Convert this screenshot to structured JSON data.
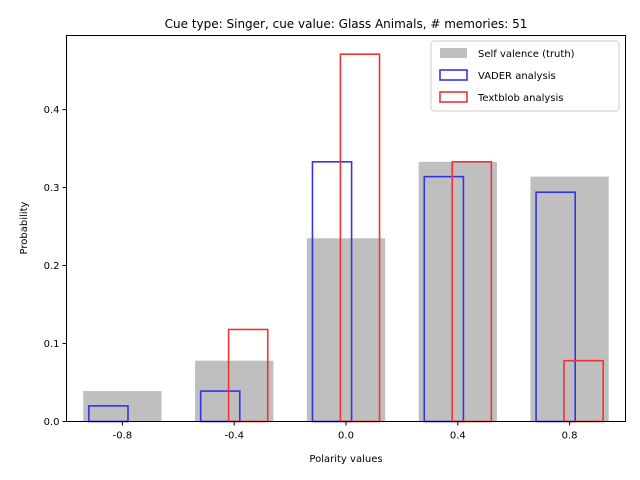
{
  "chart_data": {
    "type": "bar",
    "title": "Cue type: Singer, cue value: Glass Animals, # memories: 51",
    "xlabel": "Polarity values",
    "ylabel": "Probability",
    "x_ticks": [
      "-0.8",
      "-0.4",
      "0.0",
      "0.4",
      "0.8"
    ],
    "y_ticks": [
      "0.0",
      "0.1",
      "0.2",
      "0.3",
      "0.4"
    ],
    "xlim": [
      -1.0,
      1.0
    ],
    "ylim": [
      0,
      0.495
    ],
    "legend_position": "top-right",
    "bin_width": 0.2,
    "series": [
      {
        "name": "Self valence (truth)",
        "style": "filled",
        "color": "#bfbfbf",
        "x": [
          -0.8,
          -0.4,
          0.0,
          0.4,
          0.8
        ],
        "values": [
          0.039,
          0.078,
          0.235,
          0.333,
          0.314
        ]
      },
      {
        "name": "VADER analysis",
        "style": "outline",
        "color": "#3333ee",
        "x": [
          -0.85,
          -0.45,
          -0.05,
          0.35,
          0.75
        ],
        "values": [
          0.02,
          0.039,
          0.333,
          0.314,
          0.294
        ]
      },
      {
        "name": "Textblob analysis",
        "style": "outline",
        "color": "#ee3333",
        "x": [
          -0.75,
          -0.35,
          0.05,
          0.45,
          0.85
        ],
        "values": [
          0.0,
          0.118,
          0.471,
          0.333,
          0.078
        ]
      }
    ]
  }
}
